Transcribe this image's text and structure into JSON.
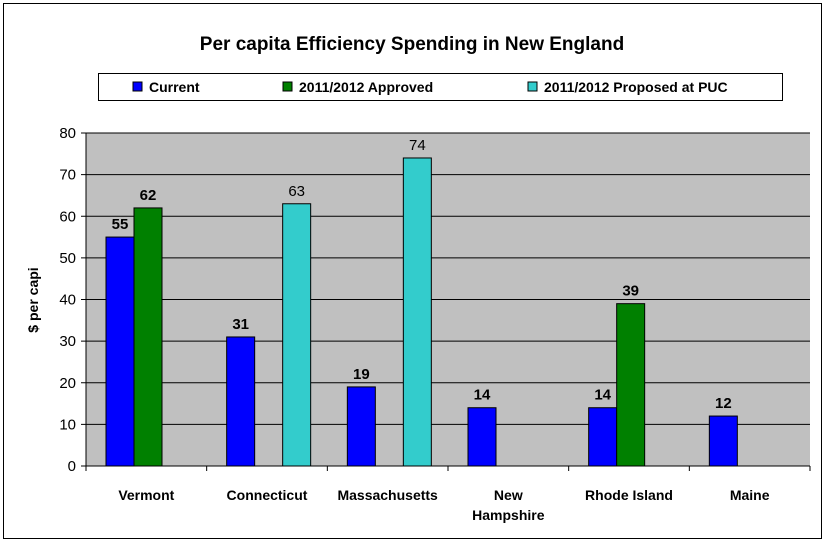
{
  "chart_data": {
    "type": "bar",
    "title": "Per capita Efficiency Spending in New England",
    "xlabel": "",
    "ylabel": "$ per capi",
    "ylim": [
      0,
      80
    ],
    "yticks": [
      0,
      10,
      20,
      30,
      40,
      50,
      60,
      70,
      80
    ],
    "categories": [
      [
        "Vermont"
      ],
      [
        "Connecticut"
      ],
      [
        "Massachusetts"
      ],
      [
        "New",
        "Hampshire"
      ],
      [
        "Rhode Island"
      ],
      [
        "Maine"
      ]
    ],
    "series": [
      {
        "name": "Current",
        "color": "#0000ff",
        "values": [
          55,
          31,
          19,
          14,
          14,
          12
        ],
        "label_bold": true
      },
      {
        "name": "2011/2012 Approved",
        "color": "#008000",
        "values": [
          62,
          null,
          null,
          null,
          39,
          null
        ],
        "label_bold": true
      },
      {
        "name": "2011/2012 Proposed at PUC",
        "color": "#33cccc",
        "values": [
          null,
          63,
          74,
          null,
          null,
          null
        ],
        "label_bold": false
      }
    ],
    "grid": true,
    "legend_position": "top",
    "plot_background": "#c0c0c0"
  }
}
